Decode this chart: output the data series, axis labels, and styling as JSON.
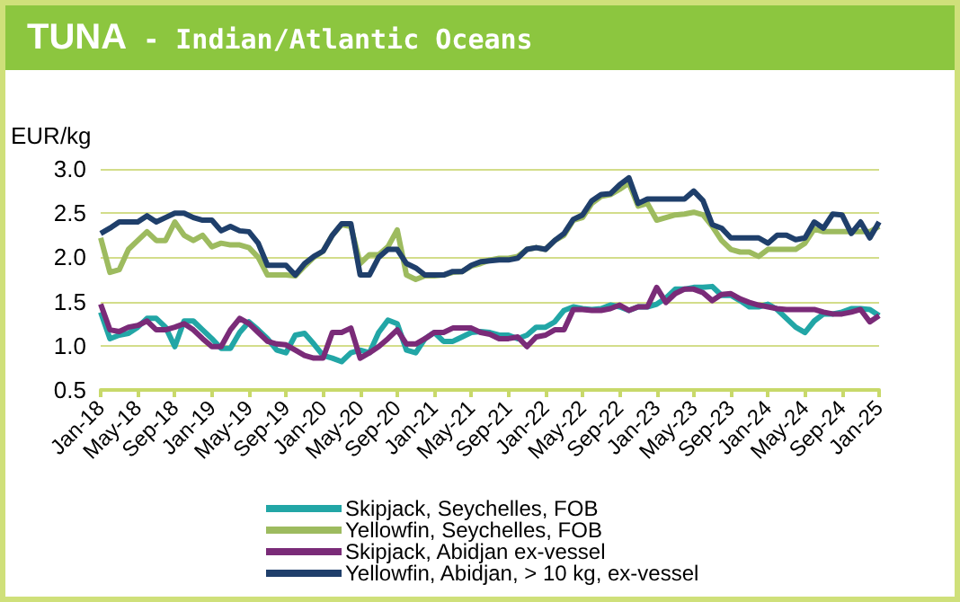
{
  "chart_data": {
    "type": "line",
    "title": "TUNA - Indian/Atlantic Oceans",
    "ylabel": "EUR/kg",
    "categories": [
      "Jan-18",
      null,
      null,
      null,
      "May-18",
      null,
      null,
      null,
      "Sep-18",
      null,
      null,
      null,
      "Jan-19",
      null,
      null,
      null,
      "May-19",
      null,
      null,
      null,
      "Sep-19",
      null,
      null,
      null,
      "Jan-20",
      null,
      null,
      null,
      "May-20",
      null,
      null,
      null,
      "Sep-20",
      null,
      null,
      null,
      "Jan-21",
      null,
      null,
      null,
      "May-21",
      null,
      null,
      null,
      "Sep-21",
      null,
      null,
      null,
      "Jan-22",
      null,
      null,
      null,
      "May-22",
      null,
      null,
      null,
      "Sep-22",
      null,
      null,
      null,
      "Jan-23",
      null,
      null,
      null,
      "May-23",
      null,
      null,
      null,
      "Sep-23",
      null,
      null,
      null,
      "Jan-24",
      null,
      null,
      null,
      "May-24",
      null,
      null,
      null,
      "Sep-24",
      null,
      null,
      null,
      "Jan-25"
    ],
    "series": [
      {
        "name": "Skipjack, Seychelles, FOB",
        "color": "#22a6a6",
        "values": [
          1.38,
          1.08,
          1.12,
          1.14,
          1.21,
          1.31,
          1.31,
          1.21,
          0.99,
          1.28,
          1.28,
          1.18,
          1.08,
          0.97,
          0.97,
          1.15,
          1.27,
          1.18,
          1.08,
          0.95,
          0.92,
          1.12,
          1.14,
          1.02,
          0.89,
          0.86,
          0.82,
          0.92,
          0.95,
          0.92,
          1.15,
          1.29,
          1.25,
          0.95,
          0.92,
          1.08,
          1.15,
          1.05,
          1.05,
          1.1,
          1.15,
          1.16,
          1.15,
          1.12,
          1.12,
          1.08,
          1.12,
          1.21,
          1.21,
          1.27,
          1.4,
          1.44,
          1.42,
          1.41,
          1.42,
          1.46,
          1.44,
          1.4,
          1.44,
          1.44,
          1.47,
          1.54,
          1.64,
          1.64,
          1.66,
          1.66,
          1.67,
          1.57,
          1.57,
          1.51,
          1.44,
          1.44,
          1.47,
          1.41,
          1.31,
          1.21,
          1.15,
          1.28,
          1.36,
          1.36,
          1.38,
          1.42,
          1.42,
          1.41,
          1.34
        ]
      },
      {
        "name": "Yellowfin, Seychelles, FOB",
        "color": "#9dbb5f",
        "values": [
          2.22,
          1.83,
          1.86,
          2.09,
          2.19,
          2.29,
          2.19,
          2.19,
          2.4,
          2.25,
          2.19,
          2.25,
          2.12,
          2.16,
          2.14,
          2.14,
          2.11,
          2.0,
          1.8,
          1.8,
          1.8,
          1.79,
          1.9,
          2.0,
          2.07,
          2.25,
          2.37,
          2.35,
          1.93,
          2.03,
          2.03,
          2.12,
          2.31,
          1.8,
          1.75,
          1.79,
          1.79,
          1.8,
          1.83,
          1.84,
          1.9,
          1.93,
          1.97,
          1.99,
          1.99,
          2.01,
          2.09,
          2.11,
          2.09,
          2.19,
          2.25,
          2.42,
          2.45,
          2.61,
          2.69,
          2.71,
          2.77,
          2.84,
          2.58,
          2.61,
          2.42,
          2.45,
          2.48,
          2.49,
          2.51,
          2.48,
          2.35,
          2.19,
          2.09,
          2.06,
          2.06,
          2.01,
          2.09,
          2.09,
          2.09,
          2.09,
          2.16,
          2.32,
          2.29,
          2.29,
          2.29,
          2.29,
          2.29,
          2.29,
          2.35
        ]
      },
      {
        "name": "Skipjack, Abidjan ex-vessel",
        "color": "#7a2b78",
        "values": [
          1.47,
          1.18,
          1.16,
          1.21,
          1.23,
          1.28,
          1.18,
          1.18,
          1.21,
          1.25,
          1.18,
          1.08,
          0.99,
          0.99,
          1.18,
          1.31,
          1.25,
          1.15,
          1.05,
          1.02,
          1.01,
          0.95,
          0.89,
          0.86,
          0.86,
          1.15,
          1.15,
          1.2,
          0.86,
          0.92,
          0.99,
          1.08,
          1.18,
          1.02,
          1.02,
          1.08,
          1.15,
          1.15,
          1.2,
          1.2,
          1.2,
          1.15,
          1.13,
          1.08,
          1.08,
          1.1,
          0.99,
          1.1,
          1.12,
          1.18,
          1.18,
          1.41,
          1.41,
          1.4,
          1.4,
          1.42,
          1.46,
          1.4,
          1.44,
          1.44,
          1.66,
          1.49,
          1.59,
          1.64,
          1.64,
          1.6,
          1.51,
          1.58,
          1.59,
          1.53,
          1.49,
          1.46,
          1.44,
          1.42,
          1.41,
          1.41,
          1.41,
          1.41,
          1.38,
          1.36,
          1.36,
          1.38,
          1.41,
          1.27,
          1.34
        ]
      },
      {
        "name": "Yellowfin, Abidjan, > 10 kg, ex-vessel",
        "color": "#1f3f6b",
        "values": [
          2.27,
          2.33,
          2.4,
          2.4,
          2.4,
          2.47,
          2.4,
          2.45,
          2.5,
          2.5,
          2.45,
          2.42,
          2.42,
          2.3,
          2.35,
          2.3,
          2.29,
          2.16,
          1.91,
          1.91,
          1.91,
          1.8,
          1.93,
          2.01,
          2.07,
          2.25,
          2.38,
          2.38,
          1.8,
          1.8,
          2.0,
          2.09,
          2.09,
          1.93,
          1.88,
          1.8,
          1.8,
          1.8,
          1.84,
          1.84,
          1.91,
          1.95,
          1.96,
          1.97,
          1.97,
          1.99,
          2.09,
          2.11,
          2.09,
          2.19,
          2.27,
          2.43,
          2.48,
          2.64,
          2.71,
          2.72,
          2.82,
          2.9,
          2.61,
          2.66,
          2.66,
          2.66,
          2.66,
          2.66,
          2.75,
          2.64,
          2.37,
          2.33,
          2.22,
          2.22,
          2.22,
          2.22,
          2.16,
          2.25,
          2.25,
          2.2,
          2.22,
          2.4,
          2.33,
          2.49,
          2.48,
          2.27,
          2.4,
          2.22,
          2.4
        ]
      }
    ],
    "ylim": [
      0.5,
      3.0
    ],
    "yticks": [
      0.5,
      {
        "value": 1,
        "label": "1.0"
      },
      1.5,
      {
        "value": 2,
        "label": "2.0"
      },
      2.5,
      {
        "value": 3,
        "label": "3.0"
      }
    ],
    "grid": "y",
    "legend": "bottom",
    "marker": "none",
    "line_style": "solid"
  }
}
